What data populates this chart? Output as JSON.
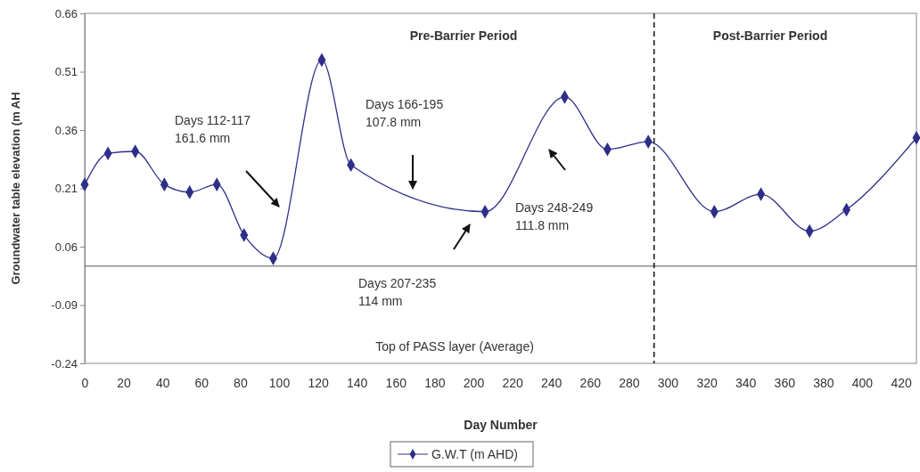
{
  "chart_data": {
    "type": "line",
    "xlabel": "Day Number",
    "ylabel": "Groundwater table elevation (m AH",
    "x": [
      0,
      12,
      26,
      41,
      54,
      68,
      82,
      97,
      122,
      137,
      206,
      247,
      269,
      290,
      324,
      348,
      373,
      392,
      428
    ],
    "series": [
      {
        "name": "G.W.T (m AHD)",
        "color": "#2e2e88",
        "values": [
          0.22,
          0.3,
          0.305,
          0.22,
          0.2,
          0.22,
          0.09,
          0.03,
          0.54,
          0.27,
          0.15,
          0.445,
          0.31,
          0.33,
          0.15,
          0.195,
          0.1,
          0.155,
          0.34
        ]
      }
    ],
    "xlim": [
      0,
      428
    ],
    "xticks": [
      0,
      20,
      40,
      60,
      80,
      100,
      120,
      140,
      160,
      180,
      200,
      220,
      240,
      260,
      280,
      300,
      320,
      340,
      360,
      380,
      400,
      420
    ],
    "ylim": [
      -0.24,
      0.66
    ],
    "yticks": [
      -0.24,
      -0.09,
      0.06,
      0.21,
      0.36,
      0.51,
      0.66
    ],
    "marker": "diamond",
    "line_style": "solid",
    "grid": false,
    "legend": "bottom",
    "ref_lines": [
      {
        "axis": "y",
        "value": 0.01,
        "label": "Top of PASS layer (Average)",
        "color": "#555555",
        "line_style": "solid"
      },
      {
        "axis": "x",
        "value": 293,
        "label": null,
        "color": "#111111",
        "line_style": "dashed"
      }
    ],
    "annotations": [
      "Pre-Barrier Period",
      "Post-Barrier Period",
      "Days 112-117\n161.6 mm",
      "Days 166-195\n107.8 mm",
      "Days 207-235\n114 mm",
      "Days 248-249\n111.8 mm"
    ]
  }
}
